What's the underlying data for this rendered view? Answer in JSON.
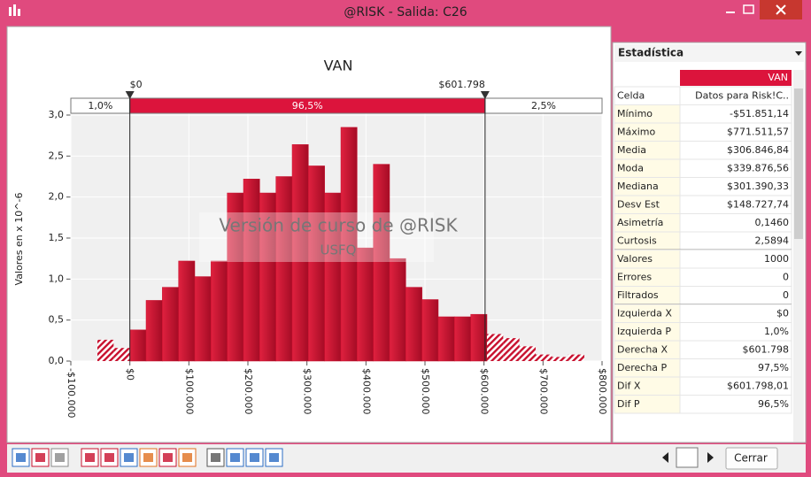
{
  "window": {
    "title": "@RISK - Salida: C26"
  },
  "chart_data": {
    "type": "histogram",
    "title": "VAN",
    "ylabel": "Valores en x 10^-6",
    "bins": [
      -55000,
      -27500,
      0,
      27500,
      55000,
      82500,
      110000,
      137500,
      165000,
      192500,
      220000,
      247500,
      275000,
      302500,
      330000,
      357500,
      385000,
      412500,
      440000,
      467500,
      495000,
      522500,
      550000,
      577500,
      605000,
      632500,
      660000,
      687500,
      715000,
      742500,
      770000
    ],
    "values": [
      0.26,
      0.16,
      0.38,
      0.74,
      0.9,
      1.22,
      1.03,
      1.22,
      2.05,
      2.22,
      2.05,
      2.25,
      2.64,
      2.38,
      2.05,
      2.85,
      1.38,
      2.4,
      1.25,
      0.9,
      0.75,
      0.54,
      0.54,
      0.57,
      0.33,
      0.28,
      0.18,
      0.08,
      0.05,
      0.08
    ],
    "color": "#c8102e",
    "xlim": [
      -100000,
      800000
    ],
    "xticks": [
      {
        "value": -100000,
        "label": "-$100.000"
      },
      {
        "value": 0,
        "label": "$0"
      },
      {
        "value": 100000,
        "label": "$100.000"
      },
      {
        "value": 200000,
        "label": "$200.000"
      },
      {
        "value": 300000,
        "label": "$300.000"
      },
      {
        "value": 400000,
        "label": "$400.000"
      },
      {
        "value": 500000,
        "label": "$500.000"
      },
      {
        "value": 600000,
        "label": "$600.000"
      },
      {
        "value": 700000,
        "label": "$700.000"
      },
      {
        "value": 800000,
        "label": "$800.000"
      }
    ],
    "ylim": [
      0,
      3
    ],
    "yticks": [
      {
        "value": 0,
        "label": "0,0"
      },
      {
        "value": 0.5,
        "label": "0,5"
      },
      {
        "value": 1,
        "label": "1,0"
      },
      {
        "value": 1.5,
        "label": "1,5"
      },
      {
        "value": 2,
        "label": "2,0"
      },
      {
        "value": 2.5,
        "label": "2,5"
      },
      {
        "value": 3,
        "label": "3,0"
      }
    ],
    "grid": true,
    "delimiters": [
      {
        "value": 0,
        "label": "$0"
      },
      {
        "value": 601798,
        "label": "$601.798"
      }
    ],
    "band": {
      "values": [
        1.0,
        96.5,
        2.5
      ],
      "value_labels": [
        "1,0%",
        "96,5%",
        "2,5%"
      ]
    },
    "watermark": [
      "Versión de curso de @RISK",
      "USFQ"
    ]
  },
  "stats": {
    "title": "Estadística",
    "column": "VAN",
    "rows": [
      [
        "Celda",
        "Datos para Risk!C.."
      ],
      [
        "Mínimo",
        "-$51.851,14"
      ],
      [
        "Máximo",
        "$771.511,57"
      ],
      [
        "Media",
        "$306.846,84"
      ],
      [
        "Moda",
        "$339.876,56"
      ],
      [
        "Mediana",
        "$301.390,33"
      ],
      [
        "Desv Est",
        "$148.727,74"
      ],
      [
        "Asimetría",
        "0,1460"
      ],
      [
        "Curtosis",
        "2,5894"
      ],
      [
        "Valores",
        "1000"
      ],
      [
        "Errores",
        "0"
      ],
      [
        "Filtrados",
        "0"
      ],
      [
        "Izquierda X",
        "$0"
      ],
      [
        "Izquierda P",
        "1,0%"
      ],
      [
        "Derecha X",
        "$601.798"
      ],
      [
        "Derecha P",
        "97,5%"
      ],
      [
        "Dif X",
        "$601.798,01"
      ],
      [
        "Dif P",
        "96,5%"
      ]
    ]
  },
  "toolbar": {
    "close": "Cerrar"
  }
}
